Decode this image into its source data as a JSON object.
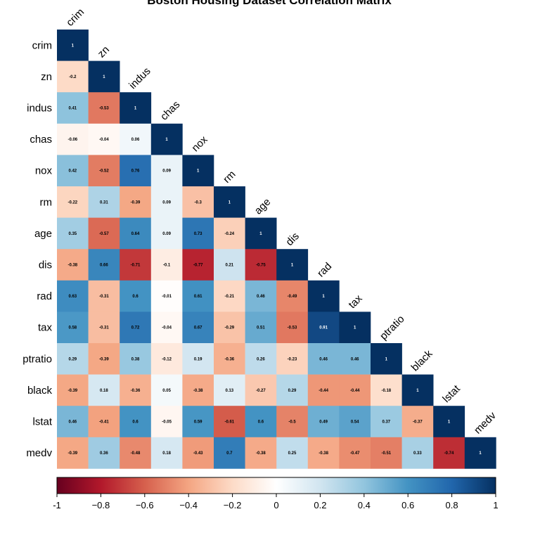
{
  "chart_data": {
    "type": "heatmap",
    "title": "Boston Housing Dataset Correlation Matrix",
    "variables": [
      "crim",
      "zn",
      "indus",
      "chas",
      "nox",
      "rm",
      "age",
      "dis",
      "rad",
      "tax",
      "ptratio",
      "black",
      "lstat",
      "medv"
    ],
    "layout": "lower-triangle",
    "matrix": [
      [
        1
      ],
      [
        -0.2,
        1
      ],
      [
        0.41,
        -0.53,
        1
      ],
      [
        -0.06,
        -0.04,
        0.06,
        1
      ],
      [
        0.42,
        -0.52,
        0.76,
        0.09,
        1
      ],
      [
        -0.22,
        0.31,
        -0.39,
        0.09,
        -0.3,
        1
      ],
      [
        0.35,
        -0.57,
        0.64,
        0.09,
        0.73,
        -0.24,
        1
      ],
      [
        -0.38,
        0.66,
        -0.71,
        -0.1,
        -0.77,
        0.21,
        -0.75,
        1
      ],
      [
        0.63,
        -0.31,
        0.6,
        -0.01,
        0.61,
        -0.21,
        0.46,
        -0.49,
        1
      ],
      [
        0.58,
        -0.31,
        0.72,
        -0.04,
        0.67,
        -0.29,
        0.51,
        -0.53,
        0.91,
        1
      ],
      [
        0.29,
        -0.39,
        0.38,
        -0.12,
        0.19,
        -0.36,
        0.26,
        -0.23,
        0.46,
        0.46,
        1
      ],
      [
        -0.39,
        0.18,
        -0.36,
        0.05,
        -0.38,
        0.13,
        -0.27,
        0.29,
        -0.44,
        -0.44,
        -0.18,
        1
      ],
      [
        0.46,
        -0.41,
        0.6,
        -0.05,
        0.59,
        -0.61,
        0.6,
        -0.5,
        0.49,
        0.54,
        0.37,
        -0.37,
        1
      ],
      [
        -0.39,
        0.36,
        -0.48,
        0.18,
        -0.43,
        0.7,
        -0.38,
        0.25,
        -0.38,
        -0.47,
        -0.51,
        0.33,
        -0.74,
        1
      ]
    ],
    "colorbar": {
      "range": [
        -1,
        1
      ],
      "ticks": [
        -1,
        -0.8,
        -0.6,
        -0.4,
        -0.2,
        0,
        0.2,
        0.4,
        0.6,
        0.8,
        1
      ],
      "tick_labels": [
        "-1",
        "−0.8",
        "−0.6",
        "−0.4",
        "−0.2",
        "0",
        "0.2",
        "0.4",
        "0.6",
        "0.8",
        "1"
      ],
      "placement": "bottom"
    },
    "colors": {
      "neg1": "#67001f",
      "neg08": "#b2182b",
      "neg06": "#d6604d",
      "neg04": "#f4a582",
      "neg02": "#fddbc7",
      "zero": "#ffffff",
      "pos02": "#d1e5f0",
      "pos04": "#92c5de",
      "pos06": "#4393c3",
      "pos08": "#2166ac",
      "pos1": "#053061"
    }
  }
}
